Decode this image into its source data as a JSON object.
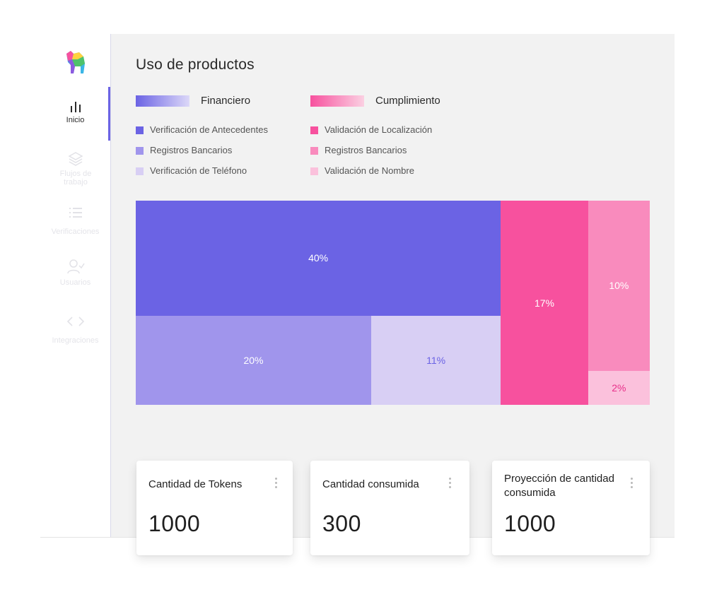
{
  "sidebar": {
    "items": [
      {
        "label": "Inicio",
        "icon": "bar-chart-icon",
        "active": true
      },
      {
        "label": "Flujos de trabajo",
        "icon": "layers-icon",
        "active": false
      },
      {
        "label": "Verificaciones",
        "icon": "list-icon",
        "active": false
      },
      {
        "label": "Usuarios",
        "icon": "user-check-icon",
        "active": false
      },
      {
        "label": "Integraciones",
        "icon": "code-icon",
        "active": false
      }
    ]
  },
  "page": {
    "title": "Uso de productos"
  },
  "legend": {
    "groups": [
      {
        "label": "Financiero",
        "color_start": "#6b63e4",
        "color_end": "#dcd8f8"
      },
      {
        "label": "Cumplimiento",
        "color_start": "#f7519e",
        "color_end": "#fbd0e2"
      }
    ],
    "financiero_items": [
      {
        "label": "Verificación de Antecedentes",
        "color": "#6b63e4"
      },
      {
        "label": "Registros Bancarios",
        "color": "#a095ec"
      },
      {
        "label": "Verificación de Teléfono",
        "color": "#d8cff4"
      }
    ],
    "cumplimiento_items": [
      {
        "label": "Validación de Localización",
        "color": "#f7519e"
      },
      {
        "label": "Registros Bancarios",
        "color": "#f98bbd"
      },
      {
        "label": "Validación de Nombre",
        "color": "#fbc1dc"
      }
    ]
  },
  "chart_data": {
    "type": "heatmap",
    "title": "",
    "tiles": [
      {
        "group": "Financiero",
        "name": "Verificación de Antecedentes",
        "value": 40,
        "label": "40%",
        "color": "#6b63e4",
        "text_color": "#ffffff"
      },
      {
        "group": "Financiero",
        "name": "Registros Bancarios",
        "value": 20,
        "label": "20%",
        "color": "#a095ec",
        "text_color": "#ffffff"
      },
      {
        "group": "Financiero",
        "name": "Verificación de Teléfono",
        "value": 11,
        "label": "11%",
        "color": "#d8cff4",
        "text_color": "#6b63e4"
      },
      {
        "group": "Cumplimiento",
        "name": "Validación de Localización",
        "value": 17,
        "label": "17%",
        "color": "#f7519e",
        "text_color": "#ffffff"
      },
      {
        "group": "Cumplimiento",
        "name": "Registros Bancarios",
        "value": 10,
        "label": "10%",
        "color": "#f98bbd",
        "text_color": "#ffffff"
      },
      {
        "group": "Cumplimiento",
        "name": "Validación de Nombre",
        "value": 2,
        "label": "2%",
        "color": "#fbc1dc",
        "text_color": "#e8308a"
      }
    ]
  },
  "cards": [
    {
      "title": "Cantidad de Tokens",
      "value": "1000"
    },
    {
      "title": "Cantidad consumida",
      "value": "300"
    },
    {
      "title": "Proyección de cantidad consumida",
      "value": "1000"
    }
  ]
}
